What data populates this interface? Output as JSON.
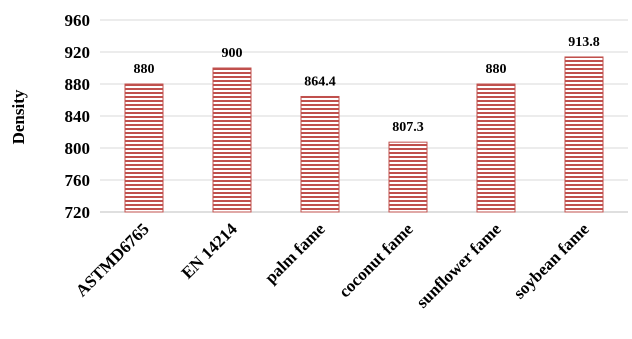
{
  "chart_data": {
    "type": "bar",
    "categories": [
      "ASTMD6765",
      "EN 14214",
      "palm fame",
      "coconut fame",
      "sunflower fame",
      "soybean fame"
    ],
    "values": [
      880,
      900,
      864.4,
      807.3,
      880,
      913.8
    ],
    "value_labels": [
      "880",
      "900",
      "864.4",
      "807.3",
      "880",
      "913.8"
    ],
    "ylabel": "Density",
    "xlabel": "",
    "ylim": [
      720,
      960
    ],
    "yticks": [
      720,
      760,
      800,
      840,
      880,
      920,
      960
    ],
    "grid": true,
    "bar_color": "#c0504d",
    "bar_stripe_color": "#ffffff"
  }
}
